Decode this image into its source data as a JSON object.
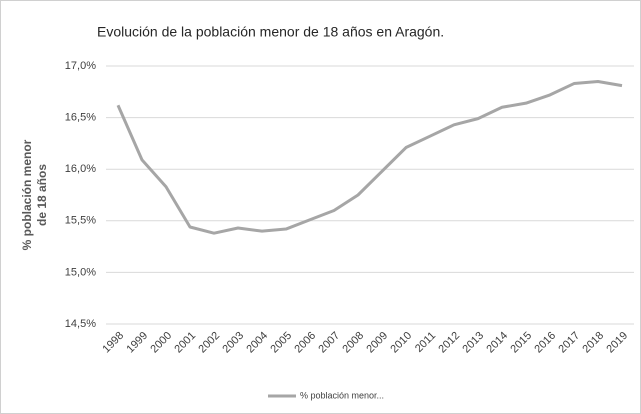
{
  "chart_data": {
    "type": "line",
    "title": "Evolución de la población menor de 18 años en Aragón.",
    "y_label": [
      "% población menor",
      "de 18 años"
    ],
    "categories": [
      "1998",
      "1999",
      "2000",
      "2001",
      "2002",
      "2003",
      "2004",
      "2005",
      "2006",
      "2007",
      "2008",
      "2009",
      "2010",
      "2011",
      "2012",
      "2013",
      "2014",
      "2015",
      "2016",
      "2017",
      "2018",
      "2019"
    ],
    "series": [
      {
        "name": "% población menor...",
        "color": "#a6a6a6",
        "values": [
          16.62,
          16.09,
          15.83,
          15.44,
          15.38,
          15.43,
          15.4,
          15.42,
          15.51,
          15.6,
          15.75,
          15.98,
          16.21,
          16.32,
          16.43,
          16.49,
          16.6,
          16.64,
          16.72,
          16.83,
          16.85,
          16.81
        ]
      }
    ],
    "ylim": [
      14.5,
      17.0
    ],
    "yticks": [
      {
        "value": 14.5,
        "label": "14,5%"
      },
      {
        "value": 15.0,
        "label": "15,0%"
      },
      {
        "value": 15.5,
        "label": "15,5%"
      },
      {
        "value": 16.0,
        "label": "16,0%"
      },
      {
        "value": 16.5,
        "label": "16,5%"
      },
      {
        "value": 17.0,
        "label": "17,0%"
      }
    ],
    "grid": true,
    "legend": "bottom"
  }
}
